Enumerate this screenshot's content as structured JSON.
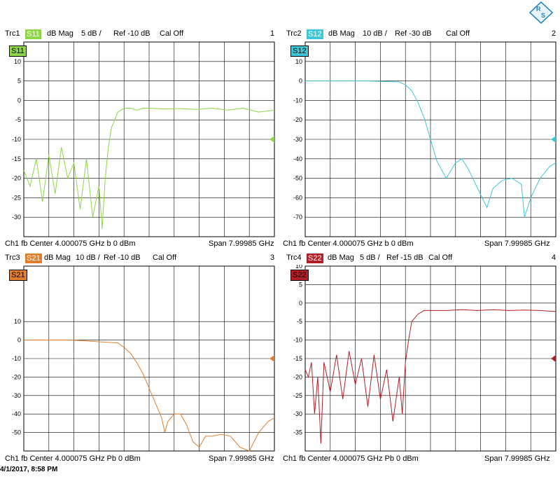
{
  "timestamp": "4/1/2017, 8:58 PM",
  "logo_icon": "rohde-schwarz-logo",
  "chart_data": [
    {
      "type": "line",
      "trace": "Trc1",
      "param": "S11",
      "format": "dB Mag",
      "scale": "5 dB /",
      "ref": "Ref -10 dB",
      "cal": "Cal Off",
      "number": "1",
      "color": "#8fd646",
      "yticks": [
        "10",
        "5",
        "0",
        "-5",
        "-10",
        "-15",
        "-20",
        "-25",
        "-30"
      ],
      "ytick_values": [
        10,
        5,
        0,
        -5,
        -10,
        -15,
        -20,
        -25,
        -30
      ],
      "ylim": [
        -35,
        15
      ],
      "ref_value": -10,
      "footer_left": "Ch1  fb  Center  4.000075 GHz b   0 dBm",
      "footer_right": "Span  7.99985 GHz",
      "x": [
        0,
        0.2,
        0.4,
        0.6,
        0.8,
        1.0,
        1.2,
        1.4,
        1.6,
        1.8,
        2.0,
        2.2,
        2.4,
        2.5,
        2.6,
        2.7,
        2.8,
        3.0,
        3.2,
        3.4,
        3.6,
        3.8,
        4.0,
        4.5,
        5.0,
        5.5,
        6.0,
        6.5,
        7.0,
        7.5,
        8.0
      ],
      "y": [
        -18,
        -22,
        -15,
        -26,
        -14,
        -24,
        -12,
        -20,
        -16,
        -28,
        -15,
        -30,
        -22,
        -33,
        -20,
        -12,
        -7,
        -3,
        -2,
        -2,
        -2.5,
        -2,
        -2,
        -2.2,
        -2.1,
        -2.3,
        -2,
        -2.5,
        -2,
        -3,
        -2.5
      ]
    },
    {
      "type": "line",
      "trace": "Trc2",
      "param": "S12",
      "format": "dB Mag",
      "scale": "10 dB /",
      "ref": "Ref -30 dB",
      "cal": "Cal Off",
      "number": "2",
      "color": "#3cc8d8",
      "yticks": [
        "10",
        "0",
        "-10",
        "-20",
        "-30",
        "-40",
        "-50",
        "-60",
        "-70"
      ],
      "ytick_values": [
        10,
        0,
        -10,
        -20,
        -30,
        -40,
        -50,
        -60,
        -70
      ],
      "ylim": [
        -80,
        20
      ],
      "ref_value": -30,
      "footer_left": "Ch1  fb  Center  4.000075 GHz b   0 dBm",
      "footer_right": "Span  7.99985 GHz",
      "x": [
        0,
        0.5,
        1.0,
        1.5,
        2.0,
        2.5,
        3.0,
        3.2,
        3.4,
        3.6,
        3.8,
        4.0,
        4.2,
        4.5,
        4.8,
        5.0,
        5.2,
        5.5,
        5.8,
        6.0,
        6.3,
        6.6,
        6.9,
        7.0,
        7.2,
        7.5,
        7.8,
        8.0
      ],
      "y": [
        0,
        0,
        0,
        0,
        0,
        -0.3,
        -0.5,
        -2,
        -5,
        -11,
        -19,
        -30,
        -41,
        -50,
        -42,
        -40,
        -45,
        -55,
        -65,
        -55,
        -51,
        -50,
        -53,
        -70,
        -60,
        -50,
        -44,
        -42
      ]
    },
    {
      "type": "line",
      "trace": "Trc3",
      "param": "S21",
      "format": "dB Mag",
      "scale": "10 dB /",
      "ref": "Ref -10 dB",
      "cal": "Cal Off",
      "number": "3",
      "color": "#e07e2c",
      "yticks": [
        "10",
        "0",
        "-10",
        "-20",
        "-30",
        "-40",
        "-50"
      ],
      "ytick_values": [
        10,
        0,
        -10,
        -20,
        -30,
        -40,
        -50
      ],
      "ylim": [
        -60,
        40
      ],
      "ref_value": -10,
      "footer_left": "Ch1  fb  Center  4.000075 GHz    Pb   0 dBm",
      "footer_right": "Span  7.99985 GHz",
      "x": [
        0,
        0.5,
        1.0,
        1.5,
        2.0,
        2.5,
        3.0,
        3.2,
        3.4,
        3.6,
        3.8,
        4.0,
        4.2,
        4.4,
        4.5,
        4.6,
        4.8,
        5.0,
        5.2,
        5.4,
        5.6,
        5.8,
        6.0,
        6.3,
        6.6,
        6.9,
        7.2,
        7.5,
        7.8,
        8.0
      ],
      "y": [
        0,
        0,
        0,
        0,
        -0.5,
        -1,
        -1.5,
        -4,
        -7,
        -12,
        -18,
        -26,
        -34,
        -42,
        -50,
        -44,
        -40,
        -40,
        -46,
        -55,
        -58,
        -52,
        -52,
        -51,
        -52,
        -58,
        -60,
        -50,
        -44,
        -42
      ]
    },
    {
      "type": "line",
      "trace": "Trc4",
      "param": "S22",
      "format": "dB Mag",
      "scale": "5 dB /",
      "ref": "Ref -15 dB",
      "cal": "Cal Off",
      "number": "4",
      "color": "#b41e26",
      "yticks": [
        "10",
        "5",
        "0",
        "-5",
        "-10",
        "-15",
        "-20",
        "-25",
        "-30",
        "-35"
      ],
      "ytick_values": [
        10,
        5,
        0,
        -5,
        -10,
        -15,
        -20,
        -25,
        -30,
        -35
      ],
      "ylim": [
        -40,
        10
      ],
      "ref_value": -15,
      "footer_left": "Ch1  fb  Center  4.000075 GHz    Pb   0 dBm",
      "footer_right": "Span  7.99985 GHz",
      "x": [
        0,
        0.1,
        0.2,
        0.3,
        0.4,
        0.5,
        0.6,
        0.8,
        1.0,
        1.2,
        1.4,
        1.6,
        1.8,
        2.0,
        2.2,
        2.4,
        2.6,
        2.8,
        3.0,
        3.1,
        3.2,
        3.3,
        3.4,
        3.6,
        3.8,
        4.0,
        4.5,
        5.0,
        5.5,
        6.0,
        6.5,
        7.0,
        7.5,
        8.0
      ],
      "y": [
        -18,
        -20,
        -16,
        -30,
        -20,
        -38,
        -16,
        -24,
        -14,
        -26,
        -13,
        -22,
        -15,
        -28,
        -14,
        -26,
        -18,
        -32,
        -20,
        -30,
        -16,
        -10,
        -5,
        -3,
        -2,
        -2,
        -2,
        -1.8,
        -2,
        -1.8,
        -2,
        -1.9,
        -2,
        -2.3
      ]
    }
  ]
}
